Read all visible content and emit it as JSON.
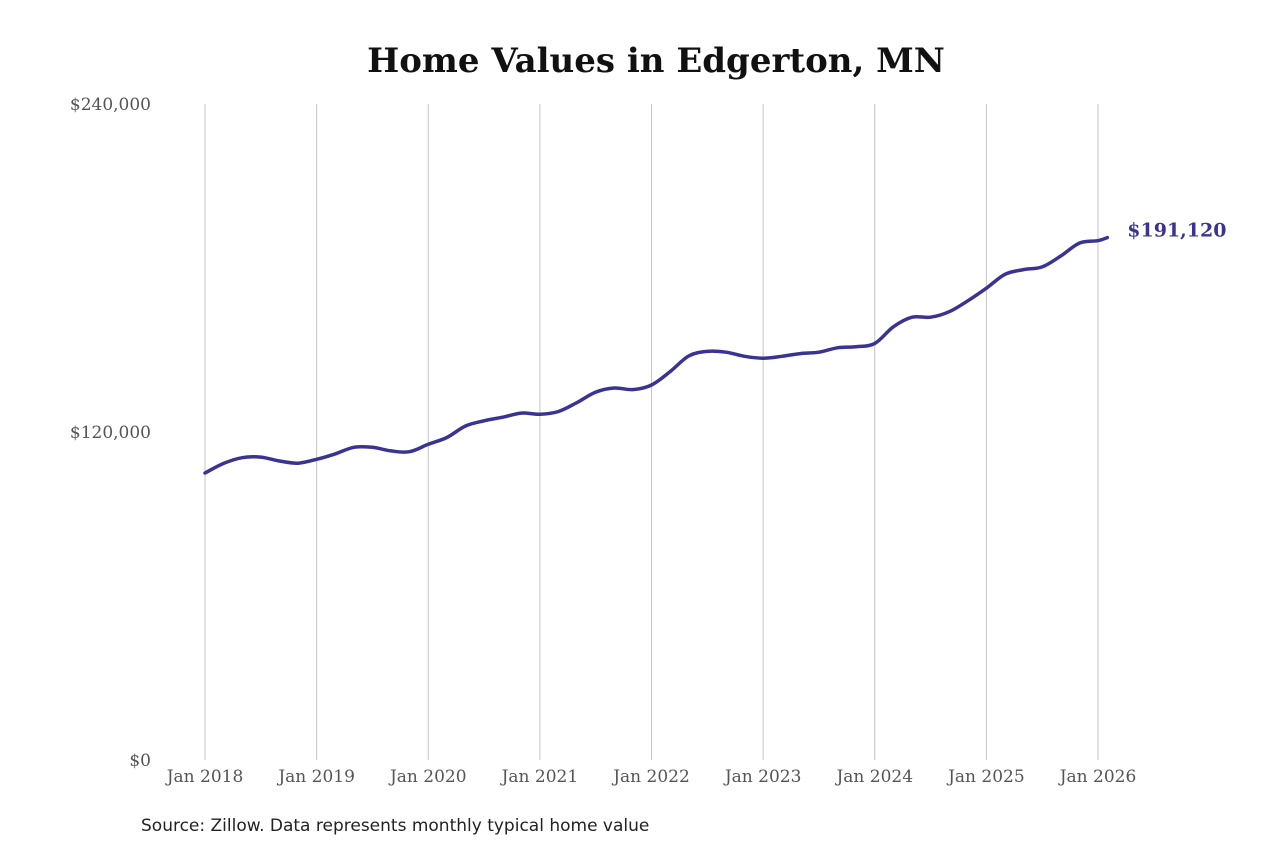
{
  "chart_data": {
    "type": "line",
    "title": "Home Values in Edgerton, MN",
    "xlabel": "",
    "ylabel": "",
    "ylim": [
      0,
      240000
    ],
    "yticks": [
      0,
      120000,
      240000
    ],
    "ytick_labels": [
      "$0",
      "$120,000",
      "$240,000"
    ],
    "xticks": [
      "2018-01",
      "2019-01",
      "2020-01",
      "2021-01",
      "2022-01",
      "2023-01",
      "2024-01",
      "2025-01",
      "2026-01"
    ],
    "xtick_labels": [
      "Jan 2018",
      "Jan 2019",
      "Jan 2020",
      "Jan 2021",
      "Jan 2022",
      "Jan 2023",
      "Jan 2024",
      "Jan 2025",
      "Jan 2026"
    ],
    "grid": "vertical",
    "line_color": "#3a3393",
    "series": [
      {
        "x": [
          "2018-01",
          "2018-03",
          "2018-05",
          "2018-07",
          "2018-09",
          "2018-11",
          "2019-01",
          "2019-03",
          "2019-05",
          "2019-07",
          "2019-09",
          "2019-11",
          "2020-01",
          "2020-03",
          "2020-05",
          "2020-07",
          "2020-09",
          "2020-11",
          "2021-01",
          "2021-03",
          "2021-05",
          "2021-07",
          "2021-09",
          "2021-11",
          "2022-01",
          "2022-03",
          "2022-05",
          "2022-07",
          "2022-09",
          "2022-11",
          "2023-01",
          "2023-03",
          "2023-05",
          "2023-07",
          "2023-09",
          "2023-11",
          "2024-01",
          "2024-03",
          "2024-05",
          "2024-07",
          "2024-09",
          "2024-11",
          "2025-01",
          "2025-03",
          "2025-05",
          "2025-07",
          "2025-09",
          "2025-11",
          "2026-01",
          "2026-02"
        ],
        "values": [
          105000,
          108500,
          110600,
          110800,
          109400,
          108600,
          110000,
          112000,
          114400,
          114400,
          113100,
          112800,
          115500,
          118000,
          122200,
          124100,
          125400,
          126900,
          126500,
          127500,
          130800,
          134600,
          136100,
          135500,
          137200,
          142100,
          147800,
          149500,
          149200,
          147700,
          147000,
          147700,
          148700,
          149200,
          150800,
          151200,
          152400,
          158500,
          162000,
          162000,
          164000,
          168000,
          172600,
          177700,
          179400,
          180400,
          184400,
          189100,
          190000,
          191120
        ]
      }
    ],
    "end_label": "$191,120"
  },
  "source": "Source: Zillow. Data represents monthly typical home value"
}
